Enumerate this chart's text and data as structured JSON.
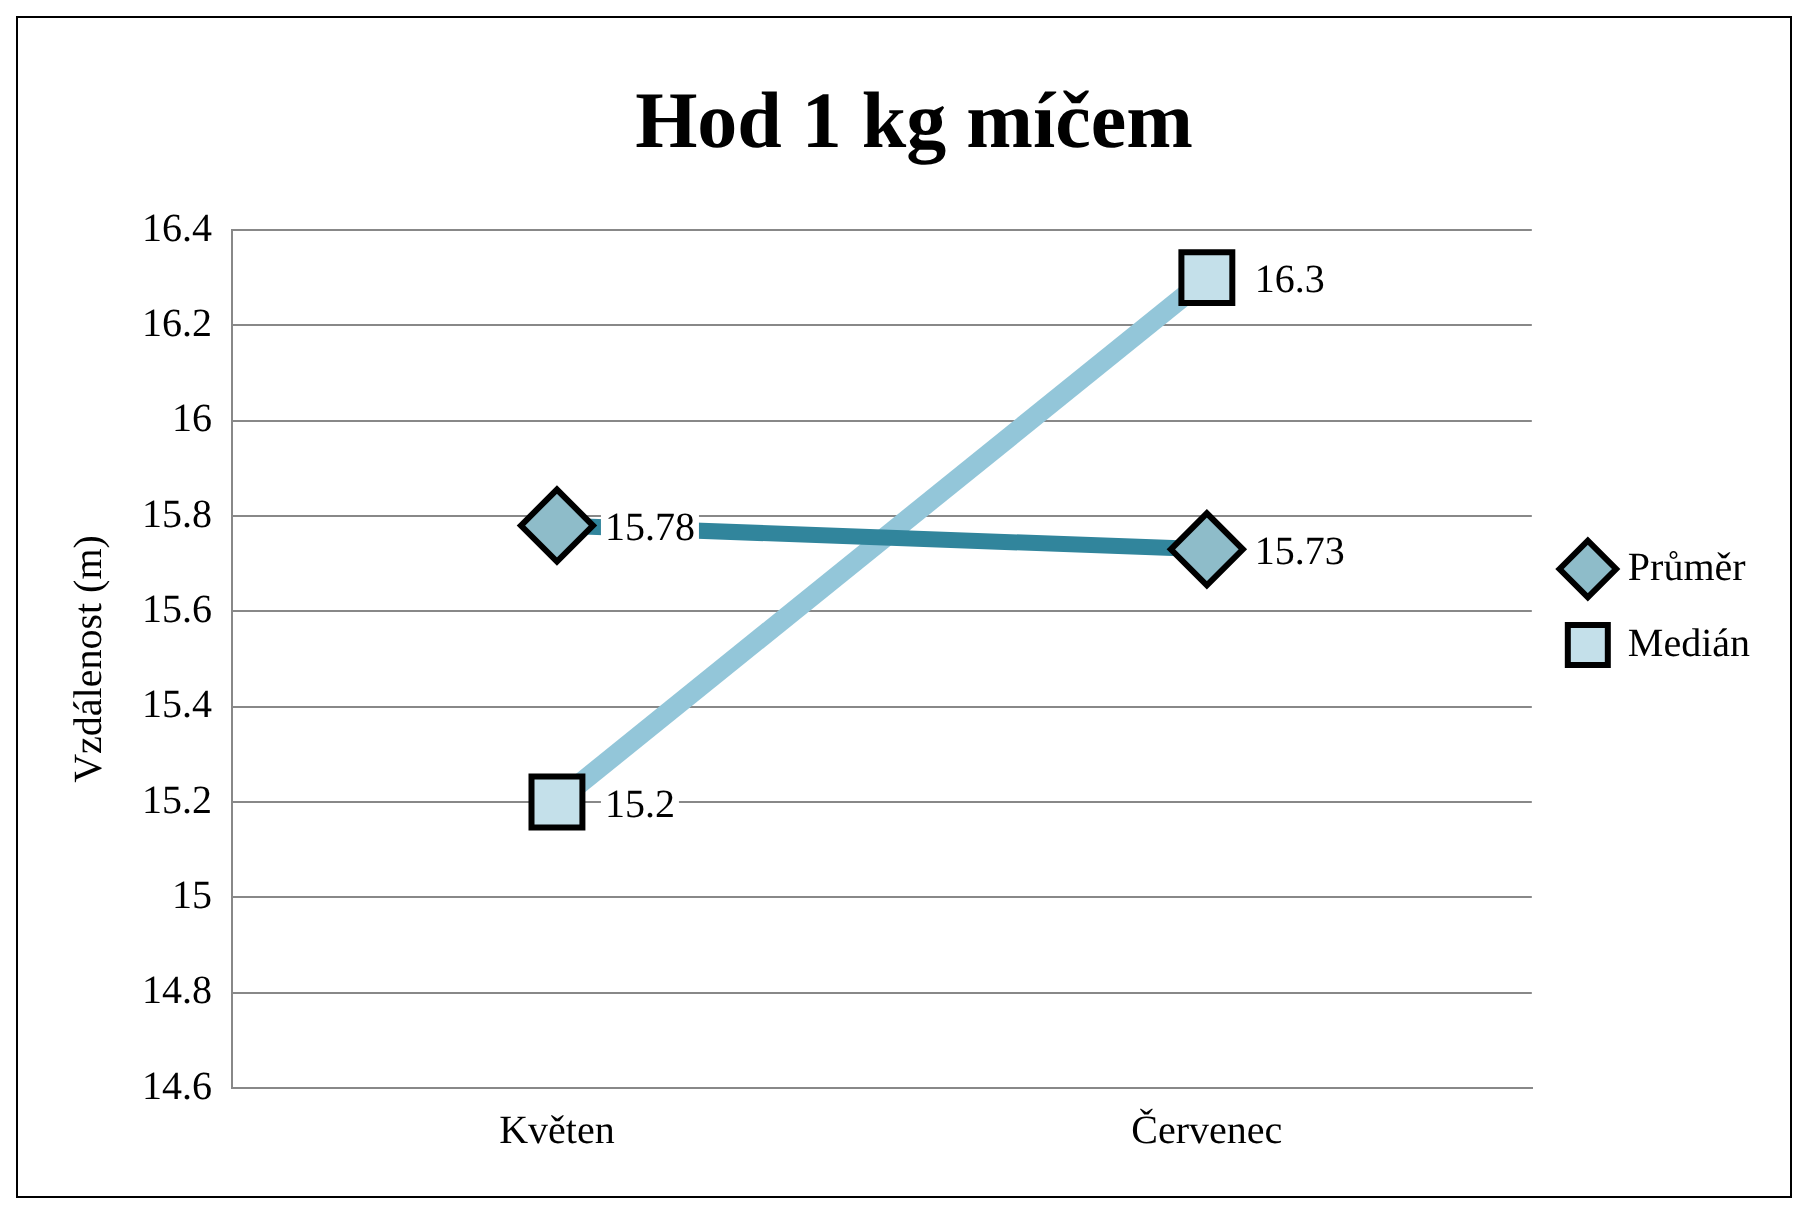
{
  "chart_data": {
    "type": "line",
    "title": "Hod 1 kg míčem",
    "ylabel": "Vzdálenost (m)",
    "categories": [
      "Květen",
      "Červenec"
    ],
    "series": [
      {
        "name": "Průměr",
        "color": "#31859c",
        "values": [
          15.78,
          15.73
        ],
        "marker": "diamond"
      },
      {
        "name": "Medián",
        "color": "#93c6d9",
        "values": [
          15.2,
          16.3
        ],
        "marker": "square"
      }
    ],
    "ylim": [
      14.6,
      16.4
    ],
    "yticks": [
      14.6,
      14.8,
      15,
      15.2,
      15.4,
      15.6,
      15.8,
      16,
      16.2,
      16.4
    ],
    "grid": "y",
    "legend": "right",
    "data_labels": true
  }
}
